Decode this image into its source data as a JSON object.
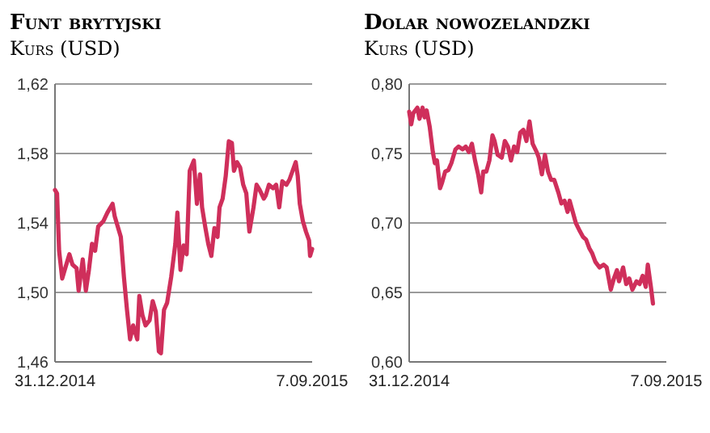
{
  "chart_data": [
    {
      "type": "line",
      "title": "Funt brytyjski",
      "subtitle": "Kurs (USD)",
      "color": "#cf2f5b",
      "grid": "y",
      "ylim": [
        1.46,
        1.62
      ],
      "yticks": [
        {
          "value": 1.46,
          "label": "1,46"
        },
        {
          "value": 1.5,
          "label": "1,50"
        },
        {
          "value": 1.54,
          "label": "1,54"
        },
        {
          "value": 1.58,
          "label": "1,58"
        },
        {
          "value": 1.62,
          "label": "1,62"
        }
      ],
      "xlim": [
        "2014-12-31",
        "2015-09-07"
      ],
      "xticks": [
        {
          "value": "2014-12-31",
          "label": "31.12.2014"
        },
        {
          "value": "2015-09-07",
          "label": "7.09.2015"
        }
      ],
      "x": [
        "2014-12-31",
        "2015-01-02",
        "2015-01-04",
        "2015-01-07",
        "2015-01-11",
        "2015-01-14",
        "2015-01-17",
        "2015-01-21",
        "2015-01-23",
        "2015-01-27",
        "2015-01-30",
        "2015-02-02",
        "2015-02-05",
        "2015-02-08",
        "2015-02-11",
        "2015-02-16",
        "2015-02-20",
        "2015-02-25",
        "2015-02-27",
        "2015-03-05",
        "2015-03-08",
        "2015-03-11",
        "2015-03-14",
        "2015-03-17",
        "2015-03-21",
        "2015-03-23",
        "2015-03-26",
        "2015-03-29",
        "2015-04-02",
        "2015-04-05",
        "2015-04-08",
        "2015-04-11",
        "2015-04-13",
        "2015-04-16",
        "2015-04-19",
        "2015-04-23",
        "2015-04-27",
        "2015-04-29",
        "2015-05-02",
        "2015-05-05",
        "2015-05-08",
        "2015-05-11",
        "2015-05-15",
        "2015-05-18",
        "2015-05-21",
        "2015-05-23",
        "2015-05-26",
        "2015-05-29",
        "2015-06-01",
        "2015-06-04",
        "2015-06-07",
        "2015-06-09",
        "2015-06-12",
        "2015-06-15",
        "2015-06-18",
        "2015-06-21",
        "2015-06-23",
        "2015-06-26",
        "2015-06-29",
        "2015-07-02",
        "2015-07-05",
        "2015-07-08",
        "2015-07-12",
        "2015-07-15",
        "2015-07-18",
        "2015-07-22",
        "2015-07-24",
        "2015-07-27",
        "2015-07-31",
        "2015-08-03",
        "2015-08-06",
        "2015-08-09",
        "2015-08-13",
        "2015-08-16",
        "2015-08-19",
        "2015-08-22",
        "2015-08-24",
        "2015-08-26",
        "2015-08-29",
        "2015-09-01",
        "2015-09-04",
        "2015-09-05",
        "2015-09-07"
      ],
      "values": [
        1.559,
        1.557,
        1.524,
        1.508,
        1.516,
        1.522,
        1.516,
        1.514,
        1.501,
        1.519,
        1.501,
        1.513,
        1.528,
        1.524,
        1.538,
        1.541,
        1.546,
        1.551,
        1.544,
        1.532,
        1.509,
        1.49,
        1.473,
        1.481,
        1.473,
        1.498,
        1.487,
        1.481,
        1.484,
        1.495,
        1.489,
        1.466,
        1.465,
        1.49,
        1.494,
        1.509,
        1.528,
        1.546,
        1.513,
        1.527,
        1.522,
        1.57,
        1.576,
        1.551,
        1.568,
        1.549,
        1.538,
        1.528,
        1.521,
        1.537,
        1.532,
        1.549,
        1.554,
        1.567,
        1.587,
        1.586,
        1.57,
        1.575,
        1.572,
        1.562,
        1.557,
        1.535,
        1.549,
        1.562,
        1.559,
        1.554,
        1.556,
        1.562,
        1.56,
        1.562,
        1.549,
        1.564,
        1.562,
        1.565,
        1.57,
        1.575,
        1.567,
        1.551,
        1.541,
        1.535,
        1.53,
        1.521,
        1.525
      ]
    },
    {
      "type": "line",
      "title": "Dolar nowozelandzki",
      "subtitle": "Kurs (USD)",
      "color": "#cf2f5b",
      "grid": "y",
      "ylim": [
        0.6,
        0.8
      ],
      "yticks": [
        {
          "value": 0.6,
          "label": "0,60"
        },
        {
          "value": 0.65,
          "label": "0,65"
        },
        {
          "value": 0.7,
          "label": "0,70"
        },
        {
          "value": 0.75,
          "label": "0,75"
        },
        {
          "value": 0.8,
          "label": "0,80"
        }
      ],
      "xlim": [
        "2014-12-31",
        "2015-09-07"
      ],
      "xticks": [
        {
          "value": "2014-12-31",
          "label": "31.12.2014"
        },
        {
          "value": "2015-09-07",
          "label": "7.09.2015"
        }
      ],
      "x": [
        "2014-12-31",
        "2015-01-02",
        "2015-01-04",
        "2015-01-08",
        "2015-01-10",
        "2015-01-13",
        "2015-01-15",
        "2015-01-17",
        "2015-01-20",
        "2015-01-23",
        "2015-01-25",
        "2015-01-27",
        "2015-01-30",
        "2015-02-01",
        "2015-02-04",
        "2015-02-07",
        "2015-02-10",
        "2015-02-14",
        "2015-02-17",
        "2015-02-21",
        "2015-02-24",
        "2015-02-27",
        "2015-03-02",
        "2015-03-05",
        "2015-03-08",
        "2015-03-11",
        "2015-03-13",
        "2015-03-16",
        "2015-03-19",
        "2015-03-22",
        "2015-03-24",
        "2015-03-27",
        "2015-03-31",
        "2015-04-03",
        "2015-04-06",
        "2015-04-09",
        "2015-04-12",
        "2015-04-15",
        "2015-04-18",
        "2015-04-21",
        "2015-04-24",
        "2015-04-27",
        "2015-04-30",
        "2015-05-04",
        "2015-05-06",
        "2015-05-09",
        "2015-05-12",
        "2015-05-15",
        "2015-05-18",
        "2015-05-21",
        "2015-05-25",
        "2015-05-28",
        "2015-05-31",
        "2015-06-03",
        "2015-06-05",
        "2015-06-08",
        "2015-06-11",
        "2015-06-15",
        "2015-06-18",
        "2015-06-21",
        "2015-06-24",
        "2015-06-27",
        "2015-06-30",
        "2015-07-04",
        "2015-07-08",
        "2015-07-11",
        "2015-07-15",
        "2015-07-18",
        "2015-07-21",
        "2015-07-23",
        "2015-07-27",
        "2015-07-30",
        "2015-08-02",
        "2015-08-05",
        "2015-08-09",
        "2015-08-12",
        "2015-08-15",
        "2015-08-18",
        "2015-08-20",
        "2015-08-23",
        "2015-08-25"
      ],
      "values": [
        0.78,
        0.771,
        0.779,
        0.783,
        0.775,
        0.783,
        0.776,
        0.781,
        0.769,
        0.751,
        0.743,
        0.745,
        0.725,
        0.729,
        0.737,
        0.738,
        0.743,
        0.753,
        0.755,
        0.753,
        0.755,
        0.751,
        0.757,
        0.745,
        0.735,
        0.722,
        0.737,
        0.737,
        0.745,
        0.763,
        0.759,
        0.749,
        0.747,
        0.759,
        0.755,
        0.745,
        0.755,
        0.751,
        0.765,
        0.767,
        0.759,
        0.773,
        0.757,
        0.751,
        0.747,
        0.735,
        0.749,
        0.737,
        0.731,
        0.731,
        0.722,
        0.714,
        0.716,
        0.708,
        0.716,
        0.708,
        0.7,
        0.694,
        0.69,
        0.688,
        0.682,
        0.678,
        0.672,
        0.668,
        0.67,
        0.668,
        0.652,
        0.66,
        0.666,
        0.658,
        0.668,
        0.656,
        0.66,
        0.652,
        0.658,
        0.656,
        0.662,
        0.654,
        0.67,
        0.654,
        0.642
      ]
    }
  ]
}
